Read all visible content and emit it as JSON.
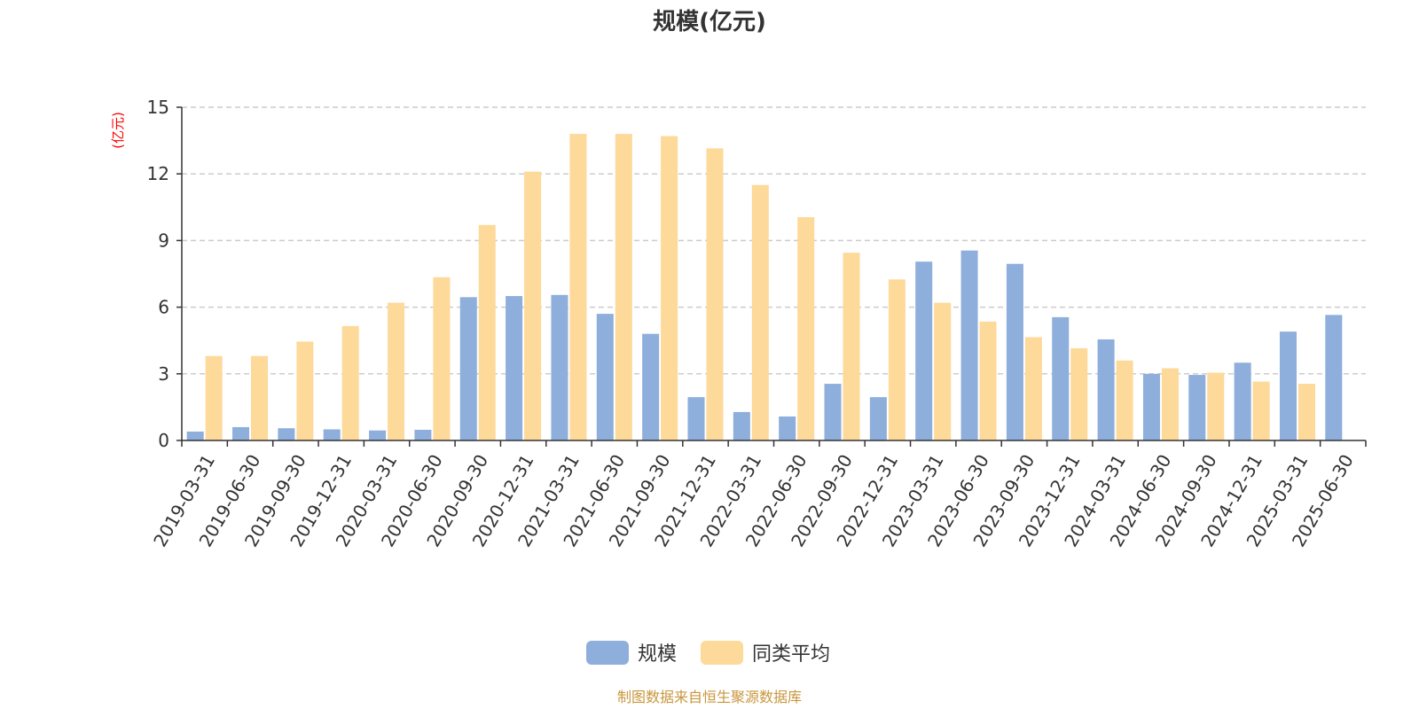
{
  "chart_data": {
    "type": "bar",
    "title": "规模(亿元)",
    "ylabel": "(亿元)",
    "ylim": [
      0,
      15
    ],
    "yticks": [
      0,
      3,
      6,
      9,
      12,
      15
    ],
    "grid": true,
    "legend_position": "bottom-center",
    "categories": [
      "2019-03-31",
      "2019-06-30",
      "2019-09-30",
      "2019-12-31",
      "2020-03-31",
      "2020-06-30",
      "2020-09-30",
      "2020-12-31",
      "2021-03-31",
      "2021-06-30",
      "2021-09-30",
      "2021-12-31",
      "2022-03-31",
      "2022-06-30",
      "2022-09-30",
      "2022-12-31",
      "2023-03-31",
      "2023-06-30",
      "2023-09-30",
      "2023-12-31",
      "2024-03-31",
      "2024-06-30",
      "2024-09-30",
      "2024-12-31",
      "2025-03-31",
      "2025-06-30"
    ],
    "series": [
      {
        "name": "规模",
        "color": "#8eaedb",
        "values": [
          0.4,
          0.6,
          0.55,
          0.5,
          0.45,
          0.48,
          6.45,
          6.5,
          6.55,
          5.7,
          4.8,
          1.95,
          1.28,
          1.08,
          2.55,
          1.95,
          8.05,
          8.55,
          7.95,
          5.55,
          4.55,
          3.0,
          2.95,
          3.5,
          4.9,
          5.65
        ]
      },
      {
        "name": "同类平均",
        "color": "#fdd99a",
        "values": [
          3.8,
          3.8,
          4.45,
          5.15,
          6.2,
          7.35,
          9.7,
          12.1,
          13.8,
          13.8,
          13.7,
          13.15,
          11.5,
          10.05,
          8.45,
          7.25,
          6.2,
          5.35,
          4.65,
          4.15,
          3.6,
          3.25,
          3.05,
          2.65,
          2.55,
          null
        ]
      }
    ],
    "source": "制图数据来自恒生聚源数据库"
  }
}
